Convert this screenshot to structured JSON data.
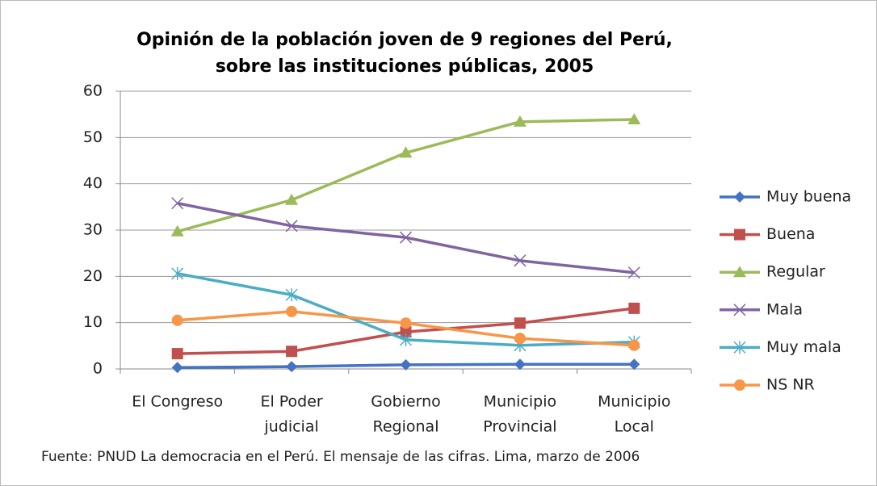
{
  "chart_data": {
    "type": "line",
    "title": "Opinión de la población joven de 9 regiones del Perú, sobre las instituciones públicas, 2005",
    "source": "Fuente: PNUD La democracia en el Perú. El mensaje de las cifras. Lima, marzo de 2006",
    "categories": [
      [
        "El Congreso"
      ],
      [
        "El Poder",
        "judicial"
      ],
      [
        "Gobierno",
        "Regional"
      ],
      [
        "Municipio",
        "Provincial"
      ],
      [
        "Municipio",
        "Local"
      ]
    ],
    "ylim": [
      0,
      60
    ],
    "yticks": [
      0,
      10,
      20,
      30,
      40,
      50,
      60
    ],
    "grid": true,
    "legend": "right",
    "series": [
      {
        "name": "Muy buena",
        "color": "#4472c4",
        "marker": "diamond",
        "values": [
          0.3,
          0.5,
          0.9,
          1.0,
          1.0
        ]
      },
      {
        "name": "Buena",
        "color": "#c0504d",
        "marker": "square",
        "values": [
          3.3,
          3.8,
          8.0,
          9.9,
          13.1
        ]
      },
      {
        "name": "Regular",
        "color": "#9bbb59",
        "marker": "triangle",
        "values": [
          29.7,
          36.5,
          46.7,
          53.4,
          53.9
        ]
      },
      {
        "name": "Mala",
        "color": "#8064a2",
        "marker": "x",
        "values": [
          35.8,
          30.9,
          28.4,
          23.4,
          20.8
        ]
      },
      {
        "name": "Muy mala",
        "color": "#4bacc6",
        "marker": "star",
        "values": [
          20.6,
          16.0,
          6.3,
          5.1,
          5.8
        ]
      },
      {
        "name": "NS NR",
        "color": "#f79646",
        "marker": "circle",
        "values": [
          10.5,
          12.4,
          9.9,
          6.6,
          5.1
        ]
      }
    ]
  }
}
